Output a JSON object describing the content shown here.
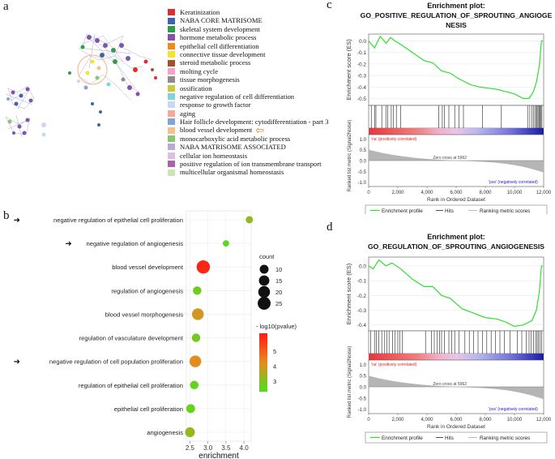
{
  "panels": {
    "a": "a",
    "b": "b",
    "c": "c",
    "d": "d"
  },
  "network_legend": {
    "items": [
      {
        "label": "Keratinization",
        "color": "#d7302f"
      },
      {
        "label": "NABA CORE MATRISOME",
        "color": "#3f63ad"
      },
      {
        "label": "skeletal system development",
        "color": "#2e9e4a"
      },
      {
        "label": "hormone metabolic process",
        "color": "#8c4fa9"
      },
      {
        "label": "epithelial cell differentiation",
        "color": "#f08a1c"
      },
      {
        "label": "connective tissue development",
        "color": "#f2e52e"
      },
      {
        "label": "steroid metabolic process",
        "color": "#a0522d"
      },
      {
        "label": "molting cycle",
        "color": "#f6a3c8"
      },
      {
        "label": "tissue morphogenesis",
        "color": "#8c8c8c"
      },
      {
        "label": "ossification",
        "color": "#c9cc3a"
      },
      {
        "label": "negative regulation of cell differentiation",
        "color": "#7fd3db"
      },
      {
        "label": "response to growth factor",
        "color": "#c7d8f0"
      },
      {
        "label": "aging",
        "color": "#f5a99c"
      },
      {
        "label": "Hair follicle development: cytodifferentiation - part 3",
        "color": "#7fa6d6"
      },
      {
        "label": "blood vessel development",
        "color": "#f5c18a"
      },
      {
        "label": "monocarboxylic acid metabolic process",
        "color": "#88c86e"
      },
      {
        "label": "NABA MATRISOME ASSOCIATED",
        "color": "#b9a8d8"
      },
      {
        "label": "cellular ion homeostasis",
        "color": "#d9c2de"
      },
      {
        "label": "positive regulation of ion transmembrane transport",
        "color": "#b061a6"
      },
      {
        "label": "multicellular organismal homeostasis",
        "color": "#c8e6b4"
      }
    ]
  },
  "dotplot": {
    "chart_data": {
      "type": "scatter",
      "xlabel": "enrichment",
      "xlim": [
        2.4,
        4.2
      ],
      "xticks": [
        "2.5",
        "3.0",
        "3.5",
        "4.0"
      ],
      "tick_values": [
        2.5,
        3.0,
        3.5,
        4.0
      ],
      "terms": [
        {
          "label": "negative regulation of epithelial cell proliferation",
          "enrichment": 4.15,
          "count": 6,
          "log10p": 3.2,
          "arrow": true
        },
        {
          "label": "negative regulation of angiogenesis",
          "enrichment": 3.5,
          "count": 4,
          "log10p": 2.5,
          "arrow": true
        },
        {
          "label": "blood vessel development",
          "enrichment": 2.87,
          "count": 27,
          "log10p": 6.0,
          "arrow": false
        },
        {
          "label": "regulation of angiogenesis",
          "enrichment": 2.7,
          "count": 9,
          "log10p": 2.8,
          "arrow": false
        },
        {
          "label": "blood vessel morphogenesis",
          "enrichment": 2.72,
          "count": 20,
          "log10p": 4.0,
          "arrow": false
        },
        {
          "label": "regulation of vasculature development",
          "enrichment": 2.67,
          "count": 9,
          "log10p": 2.8,
          "arrow": false
        },
        {
          "label": "negative regulation of cell population proliferation",
          "enrichment": 2.65,
          "count": 20,
          "log10p": 4.2,
          "arrow": true
        },
        {
          "label": "regulation of epithelial cell proliferation",
          "enrichment": 2.62,
          "count": 9,
          "log10p": 2.6,
          "arrow": false
        },
        {
          "label": "epithelial cell proliferation",
          "enrichment": 2.52,
          "count": 10,
          "log10p": 2.6,
          "arrow": false
        },
        {
          "label": "angiogenesis",
          "enrichment": 2.5,
          "count": 13,
          "log10p": 3.2,
          "arrow": false
        }
      ],
      "size_legend": {
        "title": "count",
        "values": [
          "10",
          "15",
          "20",
          "25"
        ]
      },
      "color_legend": {
        "title": "- log10(pvalue)",
        "ticks": [
          "5",
          "4",
          "3"
        ],
        "tick_values": [
          5,
          4,
          3
        ],
        "range": [
          2.3,
          6.2
        ],
        "low_color": "#4be01f",
        "high_color": "#ff1a14"
      }
    }
  },
  "gsea": [
    {
      "title_line1": "Enrichment plot:",
      "title_line2": "GO_POSITIVE_REGULATION_OF_SPROUTING_ANGIOGE",
      "title_line3": "NESIS",
      "ylabel_top": "Enrichment score (ES)",
      "ylabel_bottom": "Ranked list metric (Signal2Noise)",
      "xlabel": "Rank in Ordered Dataset",
      "pos_label": "'na' (positively correlated)",
      "neg_label": "'pos' (negatively correlated)",
      "zero_label": "Zero cross at 5962",
      "legend": [
        "Enrichment profile",
        "Hits",
        "Ranking metric scores"
      ],
      "es_ticks": [
        "0.0",
        "-0.1",
        "-0.2",
        "-0.3",
        "-0.4",
        "-0.5"
      ],
      "es_tick_values": [
        0,
        -0.1,
        -0.2,
        -0.3,
        -0.4,
        -0.5
      ],
      "metric_ticks": [
        "1.0",
        "0.5",
        "0.0",
        "-0.5",
        "-1.0"
      ],
      "metric_tick_values": [
        1,
        0.5,
        0,
        -0.5,
        -1
      ],
      "x_ticks": [
        "0",
        "2,000",
        "4,000",
        "6,000",
        "8,000",
        "10,000",
        "12,000"
      ],
      "chart_data": {
        "type": "line",
        "es_range": [
          -0.56,
          0.06
        ],
        "x_max": 12000,
        "es_profile": [
          [
            0,
            0.0
          ],
          [
            400,
            -0.06
          ],
          [
            800,
            0.04
          ],
          [
            1200,
            -0.02
          ],
          [
            1500,
            0.03
          ],
          [
            1800,
            0.0
          ],
          [
            2200,
            -0.03
          ],
          [
            3000,
            -0.1
          ],
          [
            3800,
            -0.17
          ],
          [
            4400,
            -0.19
          ],
          [
            5000,
            -0.26
          ],
          [
            5600,
            -0.28
          ],
          [
            6200,
            -0.33
          ],
          [
            7000,
            -0.38
          ],
          [
            7600,
            -0.4
          ],
          [
            8200,
            -0.41
          ],
          [
            8800,
            -0.42
          ],
          [
            9400,
            -0.44
          ],
          [
            10000,
            -0.46
          ],
          [
            10600,
            -0.5
          ],
          [
            11000,
            -0.5
          ],
          [
            11300,
            -0.44
          ],
          [
            11500,
            -0.36
          ],
          [
            11700,
            -0.22
          ],
          [
            11850,
            0.0
          ],
          [
            11950,
            0.0
          ]
        ],
        "hits": [
          180,
          420,
          500,
          900,
          1180,
          1300,
          1550,
          1700,
          1900,
          2200,
          4800,
          5050,
          5200,
          5500,
          5900,
          6200,
          6500,
          7800,
          9100,
          10900,
          11050,
          11200,
          11300,
          11400,
          11500,
          11550,
          11620,
          11700,
          11760,
          11820,
          11880
        ],
        "zero_cross": 5962
      }
    },
    {
      "title_line1": "Enrichment plot:",
      "title_line2": "GO_REGULATION_OF_SPROUTING_ANGIOGENESIS",
      "title_line3": "",
      "ylabel_top": "Enrichment score (ES)",
      "ylabel_bottom": "Ranked list metric (Signal2Noise)",
      "xlabel": "Rank in Ordered Dataset",
      "pos_label": "'na' (positively correlated)",
      "neg_label": "'pos' (negatively correlated)",
      "zero_label": "Zero cross at 5962",
      "legend": [
        "Enrichment profile",
        "Hits",
        "Ranking metric scores"
      ],
      "es_ticks": [
        "0.0",
        "-0.1",
        "-0.2",
        "-0.3",
        "-0.4"
      ],
      "es_tick_values": [
        0,
        -0.1,
        -0.2,
        -0.3,
        -0.4
      ],
      "metric_ticks": [
        "1.0",
        "0.5",
        "0.0",
        "-0.5",
        "-1.0"
      ],
      "metric_tick_values": [
        1,
        0.5,
        0,
        -0.5,
        -1
      ],
      "x_ticks": [
        "0",
        "2,000",
        "4,000",
        "6,000",
        "8,000",
        "10,000",
        "12,000"
      ],
      "chart_data": {
        "type": "line",
        "es_range": [
          -0.44,
          0.06
        ],
        "x_max": 12000,
        "es_profile": [
          [
            0,
            0.0
          ],
          [
            300,
            -0.02
          ],
          [
            700,
            0.04
          ],
          [
            1200,
            0.0
          ],
          [
            1600,
            0.02
          ],
          [
            2200,
            -0.02
          ],
          [
            3000,
            -0.09
          ],
          [
            3800,
            -0.14
          ],
          [
            4400,
            -0.14
          ],
          [
            5000,
            -0.2
          ],
          [
            5600,
            -0.22
          ],
          [
            6400,
            -0.29
          ],
          [
            7200,
            -0.32
          ],
          [
            8000,
            -0.35
          ],
          [
            8800,
            -0.36
          ],
          [
            9400,
            -0.38
          ],
          [
            10000,
            -0.41
          ],
          [
            10600,
            -0.4
          ],
          [
            11200,
            -0.37
          ],
          [
            11500,
            -0.3
          ],
          [
            11700,
            -0.18
          ],
          [
            11850,
            0.0
          ],
          [
            11950,
            0.0
          ]
        ],
        "hits": [
          150,
          400,
          520,
          700,
          900,
          1100,
          1250,
          1400,
          1650,
          1800,
          2000,
          2150,
          2300,
          3900,
          4300,
          4500,
          4700,
          4850,
          5000,
          5200,
          5500,
          5700,
          5900,
          6200,
          6600,
          6900,
          7200,
          7500,
          7800,
          8100,
          8400,
          8700,
          9000,
          9300,
          9700,
          10200,
          10500,
          10800,
          11000,
          11150,
          11300,
          11450,
          11550,
          11650,
          11750,
          11850
        ],
        "zero_cross": 5962
      }
    }
  ]
}
